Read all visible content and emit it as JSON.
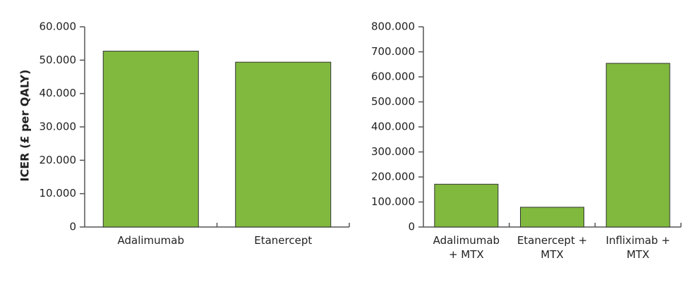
{
  "chart_data": [
    {
      "type": "bar",
      "y_label": "ICER (£ per QALY)",
      "categories": [
        "Adalimumab",
        "Etanercept"
      ],
      "values": [
        52700,
        49400
      ],
      "color": "#80b93d",
      "ylim": [
        0,
        60000
      ],
      "yticks": [
        0,
        {
          "value": 10000,
          "label": "10.000"
        },
        {
          "value": 20000,
          "label": "20.000"
        },
        {
          "value": 30000,
          "label": "30.000"
        },
        {
          "value": 40000,
          "label": "40.000"
        },
        {
          "value": 50000,
          "label": "50.000"
        },
        {
          "value": 60000,
          "label": "60.000"
        }
      ]
    },
    {
      "type": "bar",
      "categories": [
        "Adalimumab + MTX",
        "Etanercept + MTX",
        "Infliximab + MTX"
      ],
      "values": [
        171000,
        79000,
        654000
      ],
      "color": "#80b93d",
      "ylim": [
        0,
        800000
      ],
      "yticks": [
        0,
        {
          "value": 100000,
          "label": "100.000"
        },
        {
          "value": 200000,
          "label": "200.000"
        },
        {
          "value": 300000,
          "label": "300.000"
        },
        {
          "value": 400000,
          "label": "400.000"
        },
        {
          "value": 500000,
          "label": "500.000"
        },
        {
          "value": 600000,
          "label": "600.000"
        },
        {
          "value": 700000,
          "label": "700.000"
        },
        {
          "value": 800000,
          "label": "800.000"
        }
      ]
    }
  ]
}
